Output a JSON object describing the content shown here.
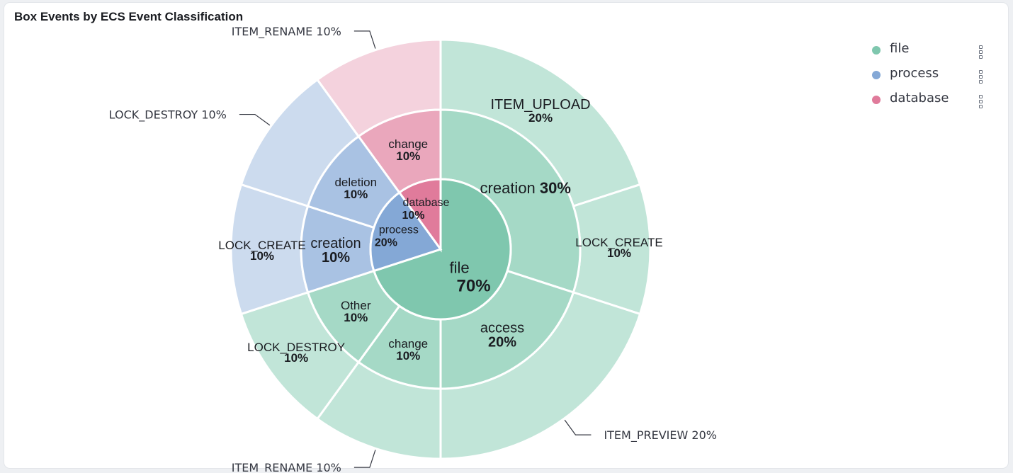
{
  "panel": {
    "title": "Box Events by ECS Event Classification"
  },
  "legend": {
    "items": [
      {
        "label": "file",
        "color": "#7fc7ae"
      },
      {
        "label": "process",
        "color": "#84a8d6"
      },
      {
        "label": "database",
        "color": "#e07b9b"
      }
    ]
  },
  "chart_data": {
    "type": "sunburst",
    "title": "Box Events by ECS Event Classification",
    "levels": [
      "event.category",
      "event.type",
      "event.action"
    ],
    "hierarchy": [
      {
        "name": "file",
        "value": 70,
        "label": "file",
        "pct": "70%",
        "children": [
          {
            "name": "creation",
            "value": 30,
            "label": "creation",
            "pct": "30%",
            "children": [
              {
                "name": "ITEM_UPLOAD",
                "value": 20,
                "pct": "20%"
              },
              {
                "name": "LOCK_CREATE",
                "value": 10,
                "pct": "10%"
              }
            ]
          },
          {
            "name": "access",
            "value": 20,
            "label": "access",
            "pct": "20%",
            "children": [
              {
                "name": "ITEM_PREVIEW",
                "value": 20,
                "pct": "20%"
              }
            ]
          },
          {
            "name": "change",
            "value": 10,
            "label": "change",
            "pct": "10%",
            "children": [
              {
                "name": "ITEM_RENAME",
                "value": 10,
                "pct": "10%"
              }
            ]
          },
          {
            "name": "Other",
            "value": 10,
            "label": "Other",
            "pct": "10%",
            "children": [
              {
                "name": "LOCK_DESTROY",
                "value": 10,
                "pct": "10%"
              }
            ]
          }
        ]
      },
      {
        "name": "process",
        "value": 20,
        "label": "process",
        "pct": "20%",
        "children": [
          {
            "name": "creation",
            "value": 10,
            "label": "creation",
            "pct": "10%",
            "children": [
              {
                "name": "LOCK_CREATE",
                "value": 10,
                "pct": "10%"
              }
            ]
          },
          {
            "name": "deletion",
            "value": 10,
            "label": "deletion",
            "pct": "10%",
            "children": [
              {
                "name": "LOCK_DESTROY",
                "value": 10,
                "pct": "10%"
              }
            ]
          }
        ]
      },
      {
        "name": "database",
        "value": 10,
        "label": "database",
        "pct": "10%",
        "children": [
          {
            "name": "change",
            "value": 10,
            "label": "change",
            "pct": "10%",
            "children": [
              {
                "name": "ITEM_RENAME",
                "value": 10,
                "pct": "10%"
              }
            ]
          }
        ]
      }
    ],
    "colors": {
      "file": [
        "#7fc7ae",
        "#a5d9c6",
        "#c1e5d8"
      ],
      "process": [
        "#84a8d6",
        "#a9c2e3",
        "#ccdbee"
      ],
      "database": [
        "#e07b9b",
        "#eaa7bc",
        "#f4d2dd"
      ]
    },
    "legend_position": "top-right"
  }
}
